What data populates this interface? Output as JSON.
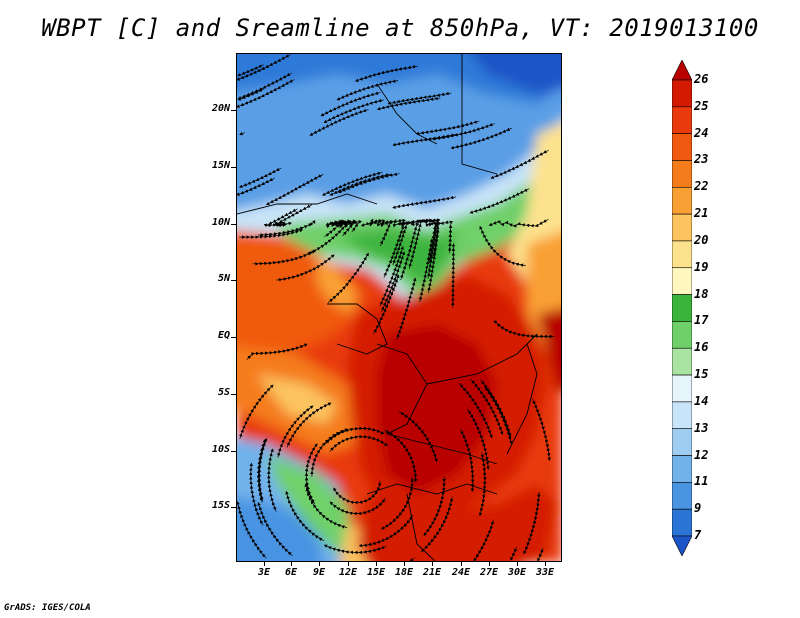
{
  "title": "WBPT [C] and Sreamline at 850hPa, VT: 2019013100",
  "footer": "GrADS: IGES/COLA",
  "map": {
    "lat_labels": [
      "20N",
      "15N",
      "10N",
      "5N",
      "EQ",
      "5S",
      "10S",
      "15S"
    ],
    "lon_labels": [
      "3E",
      "6E",
      "9E",
      "12E",
      "15E",
      "18E",
      "21E",
      "24E",
      "27E",
      "30E",
      "33E"
    ]
  },
  "colorbar": {
    "levels": [
      "26",
      "25",
      "24",
      "23",
      "22",
      "21",
      "20",
      "19",
      "18",
      "17",
      "16",
      "15",
      "14",
      "13",
      "12",
      "11",
      "9",
      "7"
    ],
    "colors": [
      "#b80000",
      "#d41a00",
      "#e83a0c",
      "#f05a10",
      "#f57c1a",
      "#f9a035",
      "#fbc45e",
      "#fde28e",
      "#fff6c0",
      "#3cb43c",
      "#6fd06a",
      "#a9e4a3",
      "#e6f5fb",
      "#c8e4f8",
      "#9fcdf2",
      "#72b2eb",
      "#4a94e2",
      "#2a74d6",
      "#1a54c6"
    ]
  }
}
